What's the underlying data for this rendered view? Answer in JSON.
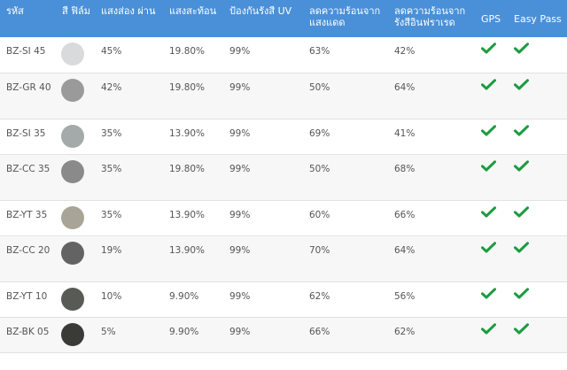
{
  "headers": {
    "code": "รหัส",
    "film": "สี ฟิล์ม",
    "transmit": "แสงส่อง ผ่าน",
    "reflect": "แสงสะท้อน",
    "uv": "ป้องกันรังสี UV",
    "heat_sun": "ลดความร้อนจาก แสงแดด",
    "heat_ir": "ลดความร้อนจาก รังสีอินฟราเรด",
    "gps": "GPS",
    "easy_pass": "Easy Pass"
  },
  "check_color": "#1a9c3e",
  "rows": [
    {
      "code": "BZ-SI 45",
      "color": "#d8dadb",
      "transmit": "45%",
      "reflect": "19.80%",
      "uv": "99%",
      "heat_sun": "63%",
      "heat_ir": "42%",
      "gps": "check-icon",
      "easy_pass": "check-icon"
    },
    {
      "code": "BZ-GR 40",
      "color": "#9a9a9a",
      "transmit": "42%",
      "reflect": "19.80%",
      "uv": "99%",
      "heat_sun": "50%",
      "heat_ir": "64%",
      "gps": "check-icon",
      "easy_pass": "check-icon"
    },
    {
      "code": "BZ-SI 35",
      "color": "#a4aaa9",
      "transmit": "35%",
      "reflect": "13.90%",
      "uv": "99%",
      "heat_sun": "69%",
      "heat_ir": "41%",
      "gps": "check-icon",
      "easy_pass": "check-icon"
    },
    {
      "code": "BZ-CC 35",
      "color": "#8a8a8a",
      "transmit": "35%",
      "reflect": "19.80%",
      "uv": "99%",
      "heat_sun": "50%",
      "heat_ir": "68%",
      "gps": "check-icon",
      "easy_pass": "check-icon"
    },
    {
      "code": "BZ-YT 35",
      "color": "#a8a596",
      "transmit": "35%",
      "reflect": "13.90%",
      "uv": "99%",
      "heat_sun": "60%",
      "heat_ir": "66%",
      "gps": "check-icon",
      "easy_pass": "check-icon"
    },
    {
      "code": "BZ-CC 20",
      "color": "#636363",
      "transmit": "19%",
      "reflect": "13.90%",
      "uv": "99%",
      "heat_sun": "70%",
      "heat_ir": "64%",
      "gps": "check-icon",
      "easy_pass": "check-icon"
    },
    {
      "code": "BZ-YT 10",
      "color": "#585b55",
      "transmit": "10%",
      "reflect": "9.90%",
      "uv": "99%",
      "heat_sun": "62%",
      "heat_ir": "56%",
      "gps": "check-icon",
      "easy_pass": "check-icon"
    },
    {
      "code": "BZ-BK 05",
      "color": "#3a3b36",
      "transmit": "5%",
      "reflect": "9.90%",
      "uv": "99%",
      "heat_sun": "66%",
      "heat_ir": "62%",
      "gps": "check-icon",
      "easy_pass": "check-icon"
    }
  ]
}
